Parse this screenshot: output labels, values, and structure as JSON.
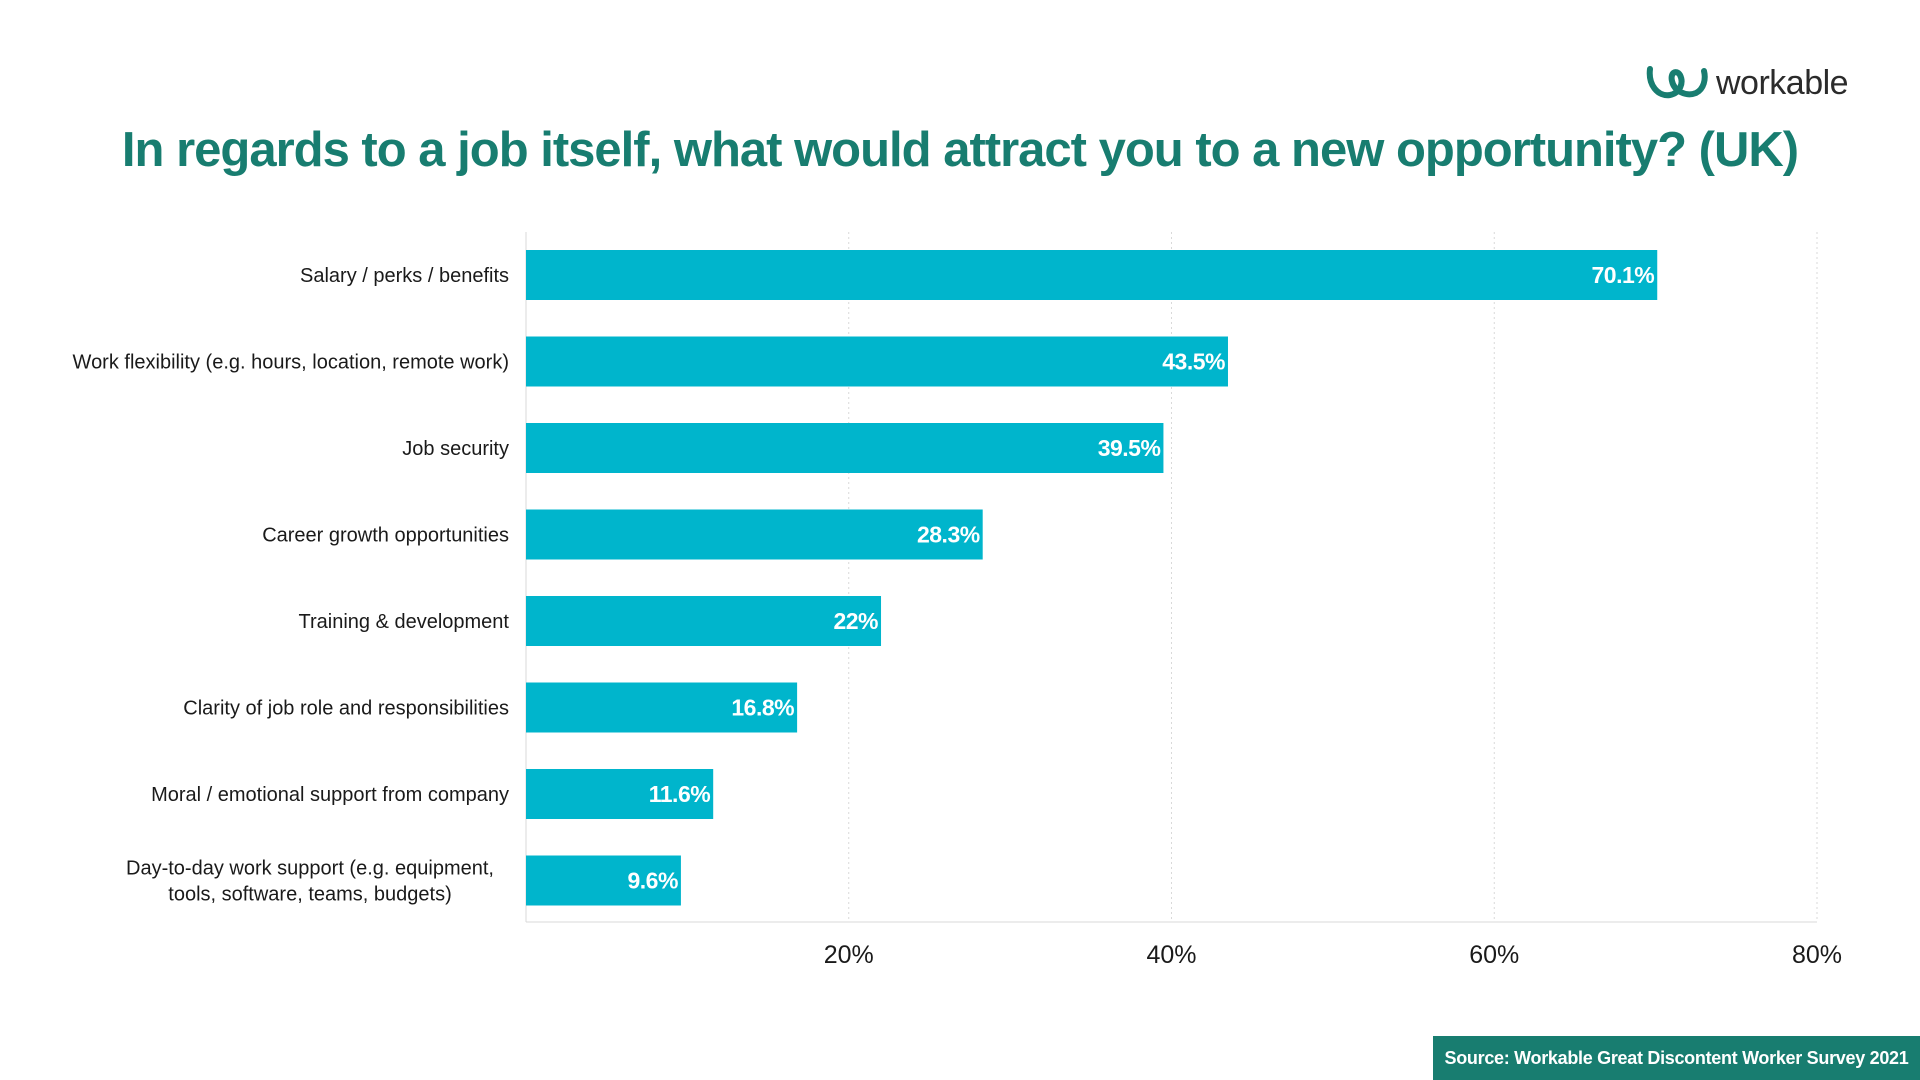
{
  "brand": {
    "logo_text": "workable",
    "logo_icon": "workable-swirl-icon",
    "logo_color": "#187d70"
  },
  "title": "In regards to a job itself, what would attract you to a new opportunity? (UK)",
  "source": "Source: Workable Great Discontent Worker Survey 2021",
  "colors": {
    "bar": "#00b5cc",
    "title": "#187d70",
    "source_bg": "#187d70",
    "grid": "#d9d9d9",
    "label_text": "#1a1a1a"
  },
  "chart_data": {
    "type": "bar",
    "orientation": "horizontal",
    "title": "In regards to a job itself, what would attract you to a new opportunity? (UK)",
    "categories": [
      [
        "Salary / perks / benefits"
      ],
      [
        "Work flexibility (e.g. hours, location, remote work)"
      ],
      [
        "Job security"
      ],
      [
        "Career growth opportunities"
      ],
      [
        "Training & development"
      ],
      [
        "Clarity of job role and responsibilities"
      ],
      [
        "Moral / emotional support from company"
      ],
      [
        "Day-to-day work support (e.g. equipment,",
        "tools, software, teams, budgets)"
      ]
    ],
    "values": [
      70.1,
      43.5,
      39.5,
      28.3,
      22,
      16.8,
      11.6,
      9.6
    ],
    "value_labels": [
      "70.1%",
      "43.5%",
      "39.5%",
      "28.3%",
      "22%",
      "16.8%",
      "11.6%",
      "9.6%"
    ],
    "xlim": [
      0,
      80
    ],
    "x_ticks": [
      20,
      40,
      60,
      80
    ],
    "x_tick_labels": [
      "20%",
      "40%",
      "60%",
      "80%"
    ],
    "grid": true,
    "grid_style": "dotted vertical",
    "legend": "none"
  }
}
